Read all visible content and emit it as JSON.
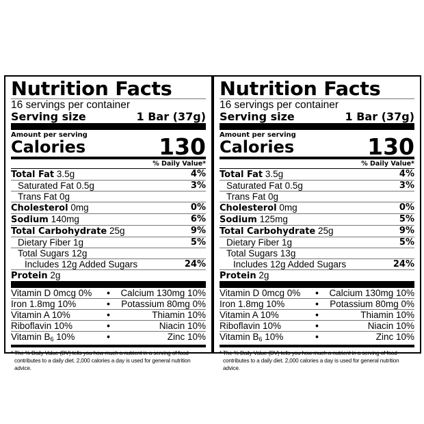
{
  "panels": [
    {
      "title": "Nutrition Facts",
      "servings_per_container": "16 servings per container",
      "serving_size_label": "Serving size",
      "serving_size_value": "1 Bar (37g)",
      "amount_per_serving": "Amount per serving",
      "calories_label": "Calories",
      "calories_value": "130",
      "dv_header": "% Daily Value*",
      "nutrients": [
        {
          "name": "Total Fat",
          "amount": "3.5g",
          "dv": "4%",
          "bold": true,
          "indent": 0
        },
        {
          "name": "Saturated Fat",
          "amount": "0.5g",
          "dv": "3%",
          "bold": false,
          "indent": 1
        },
        {
          "name": "Trans Fat",
          "amount": "0g",
          "dv": "",
          "bold": false,
          "indent": 1
        },
        {
          "name": "Cholesterol",
          "amount": "0mg",
          "dv": "0%",
          "bold": true,
          "indent": 0
        },
        {
          "name": "Sodium",
          "amount": "140mg",
          "dv": "6%",
          "bold": true,
          "indent": 0
        },
        {
          "name": "Total Carbohydrate",
          "amount": "25g",
          "dv": "9%",
          "bold": true,
          "indent": 0
        },
        {
          "name": "Dietary Fiber",
          "amount": "1g",
          "dv": "5%",
          "bold": false,
          "indent": 1
        },
        {
          "name": "Total Sugars",
          "amount": "12g",
          "dv": "",
          "bold": false,
          "indent": 1
        },
        {
          "name": "Includes 12g Added Sugars",
          "amount": "",
          "dv": "24%",
          "bold": false,
          "indent": 2
        },
        {
          "name": "Protein",
          "amount": "2g",
          "dv": "",
          "bold": true,
          "indent": 0
        }
      ],
      "vitamins": [
        {
          "left": "Vitamin D 0mcg 0%",
          "right": "Calcium 130mg 10%"
        },
        {
          "left": "Iron 1.8mg 10%",
          "right": "Potassium 80mg 0%"
        },
        {
          "left": "Vitamin A 10%",
          "right": "Thiamin 10%"
        },
        {
          "left": "Riboflavin 10%",
          "right": "Niacin 10%"
        },
        {
          "left_prefix": "Vitamin B",
          "left_sub": "6",
          "left_suffix": " 10%",
          "right": "Zinc 10%"
        }
      ],
      "bullet": "•",
      "footnote_line1": "* The % Daily Value (DV) tells you how much a nutrient in a serving of food",
      "footnote_line2": "contributes to a daily diet. 2,000 calories a day is used for general nutrition advice."
    },
    {
      "title": "Nutrition Facts",
      "servings_per_container": "16 servings per container",
      "serving_size_label": "Serving size",
      "serving_size_value": "1 Bar (37g)",
      "amount_per_serving": "Amount per serving",
      "calories_label": "Calories",
      "calories_value": "130",
      "dv_header": "% Daily Value*",
      "nutrients": [
        {
          "name": "Total Fat",
          "amount": "3.5g",
          "dv": "4%",
          "bold": true,
          "indent": 0
        },
        {
          "name": "Saturated Fat",
          "amount": "0.5g",
          "dv": "3%",
          "bold": false,
          "indent": 1
        },
        {
          "name": "Trans Fat",
          "amount": "0g",
          "dv": "",
          "bold": false,
          "indent": 1
        },
        {
          "name": "Cholesterol",
          "amount": "0mg",
          "dv": "0%",
          "bold": true,
          "indent": 0
        },
        {
          "name": "Sodium",
          "amount": "125mg",
          "dv": "5%",
          "bold": true,
          "indent": 0
        },
        {
          "name": "Total Carbohydrate",
          "amount": "25g",
          "dv": "9%",
          "bold": true,
          "indent": 0
        },
        {
          "name": "Dietary Fiber",
          "amount": "1g",
          "dv": "5%",
          "bold": false,
          "indent": 1
        },
        {
          "name": "Total Sugars",
          "amount": "13g",
          "dv": "",
          "bold": false,
          "indent": 1
        },
        {
          "name": "Includes 12g Added Sugars",
          "amount": "",
          "dv": "24%",
          "bold": false,
          "indent": 2
        },
        {
          "name": "Protein",
          "amount": "2g",
          "dv": "",
          "bold": true,
          "indent": 0
        }
      ],
      "vitamins": [
        {
          "left": "Vitamin D 0mcg 0%",
          "right": "Calcium 130mg 10%"
        },
        {
          "left": "Iron 1.8mg 10%",
          "right": "Potassium 80mg 0%"
        },
        {
          "left": "Vitamin A 10%",
          "right": "Thiamin 10%"
        },
        {
          "left": "Riboflavin 10%",
          "right": "Niacin 10%"
        },
        {
          "left_prefix": "Vitamin B",
          "left_sub": "6",
          "left_suffix": " 10%",
          "right": "Zinc 10%"
        }
      ],
      "bullet": "•",
      "footnote_line1": "* The % Daily Value (DV) tells you how much a nutrient in a serving of food",
      "footnote_line2": "contributes to a daily diet. 2,000 calories a day is used for general nutrition advice."
    }
  ]
}
